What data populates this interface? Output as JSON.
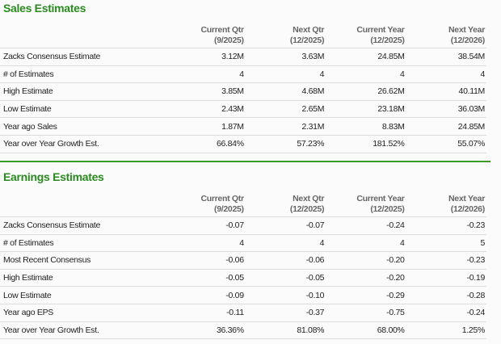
{
  "sales": {
    "title": "Sales Estimates",
    "columns": [
      {
        "name": "Current Qtr",
        "period": "(9/2025)"
      },
      {
        "name": "Next Qtr",
        "period": "(12/2025)"
      },
      {
        "name": "Current Year",
        "period": "(12/2025)"
      },
      {
        "name": "Next Year",
        "period": "(12/2026)"
      }
    ],
    "rows": [
      {
        "label": "Zacks Consensus Estimate",
        "values": [
          "3.12M",
          "3.63M",
          "24.85M",
          "38.54M"
        ]
      },
      {
        "label": "# of Estimates",
        "values": [
          "4",
          "4",
          "4",
          "4"
        ]
      },
      {
        "label": "High Estimate",
        "values": [
          "3.85M",
          "4.68M",
          "26.62M",
          "40.11M"
        ]
      },
      {
        "label": "Low Estimate",
        "values": [
          "2.43M",
          "2.65M",
          "23.18M",
          "36.03M"
        ]
      },
      {
        "label": "Year ago Sales",
        "values": [
          "1.87M",
          "2.31M",
          "8.83M",
          "24.85M"
        ]
      },
      {
        "label": "Year over Year Growth Est.",
        "values": [
          "66.84%",
          "57.23%",
          "181.52%",
          "55.07%"
        ]
      }
    ]
  },
  "earnings": {
    "title": "Earnings Estimates",
    "columns": [
      {
        "name": "Current Qtr",
        "period": "(9/2025)"
      },
      {
        "name": "Next Qtr",
        "period": "(12/2025)"
      },
      {
        "name": "Current Year",
        "period": "(12/2025)"
      },
      {
        "name": "Next Year",
        "period": "(12/2026)"
      }
    ],
    "rows": [
      {
        "label": "Zacks Consensus Estimate",
        "values": [
          "-0.07",
          "-0.07",
          "-0.24",
          "-0.23"
        ]
      },
      {
        "label": "# of Estimates",
        "values": [
          "4",
          "4",
          "4",
          "5"
        ]
      },
      {
        "label": "Most Recent Consensus",
        "values": [
          "-0.06",
          "-0.06",
          "-0.20",
          "-0.23"
        ]
      },
      {
        "label": "High Estimate",
        "values": [
          "-0.05",
          "-0.05",
          "-0.20",
          "-0.19"
        ]
      },
      {
        "label": "Low Estimate",
        "values": [
          "-0.09",
          "-0.10",
          "-0.29",
          "-0.28"
        ]
      },
      {
        "label": "Year ago EPS",
        "values": [
          "-0.11",
          "-0.37",
          "-0.75",
          "-0.24"
        ]
      },
      {
        "label": "Year over Year Growth Est.",
        "values": [
          "36.36%",
          "81.08%",
          "68.00%",
          "1.25%"
        ]
      }
    ]
  },
  "colors": {
    "title": "#2a8a1f",
    "divider": "#3a9a2a"
  }
}
